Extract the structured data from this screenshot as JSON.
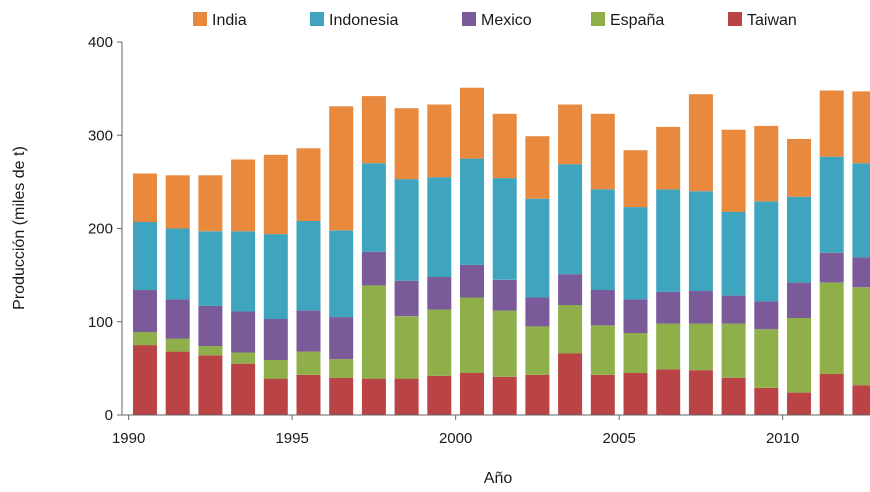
{
  "chart_data": {
    "type": "bar",
    "stacked": true,
    "title": "",
    "xlabel": "Año",
    "ylabel": "Producción (miles de t)",
    "ylim": [
      0,
      400
    ],
    "yticks": [
      0,
      100,
      200,
      300,
      400
    ],
    "xticks": [
      1990,
      1995,
      2000,
      2005,
      2010
    ],
    "grid": false,
    "legend_position": "top",
    "legend_order": [
      "India",
      "Indonesia",
      "Mexico",
      "España",
      "Taiwan"
    ],
    "categories": [
      1990,
      1991,
      1992,
      1993,
      1994,
      1995,
      1996,
      1997,
      1998,
      1999,
      2000,
      2001,
      2002,
      2003,
      2004,
      2005,
      2006,
      2007,
      2008,
      2009,
      2010,
      2011,
      2012
    ],
    "series": [
      {
        "name": "Taiwan",
        "color": "#b94345",
        "values": [
          75,
          68,
          64,
          55,
          39,
          43,
          40,
          39,
          39,
          42,
          45,
          41,
          43,
          66,
          43,
          45,
          49,
          48,
          40,
          29,
          24,
          44,
          32
        ]
      },
      {
        "name": "España",
        "color": "#8faf4b",
        "values": [
          14,
          14,
          10,
          12,
          20,
          25,
          20,
          100,
          67,
          71,
          81,
          71,
          52,
          52,
          53,
          43,
          49,
          50,
          58,
          63,
          80,
          98,
          105
        ]
      },
      {
        "name": "Mexico",
        "color": "#7a5a99",
        "values": [
          45,
          42,
          43,
          44,
          44,
          44,
          45,
          36,
          38,
          35,
          35,
          33,
          31,
          33,
          38,
          36,
          34,
          35,
          30,
          30,
          38,
          32,
          32
        ]
      },
      {
        "name": "Indonesia",
        "color": "#3fa5be",
        "values": [
          73,
          76,
          80,
          86,
          91,
          96,
          93,
          95,
          109,
          107,
          114,
          109,
          106,
          118,
          108,
          99,
          110,
          107,
          90,
          107,
          92,
          103,
          101
        ]
      },
      {
        "name": "India",
        "color": "#e8893d",
        "values": [
          52,
          57,
          60,
          77,
          85,
          78,
          133,
          72,
          76,
          78,
          76,
          69,
          67,
          64,
          81,
          61,
          67,
          104,
          88,
          81,
          62,
          71,
          77
        ]
      }
    ]
  }
}
